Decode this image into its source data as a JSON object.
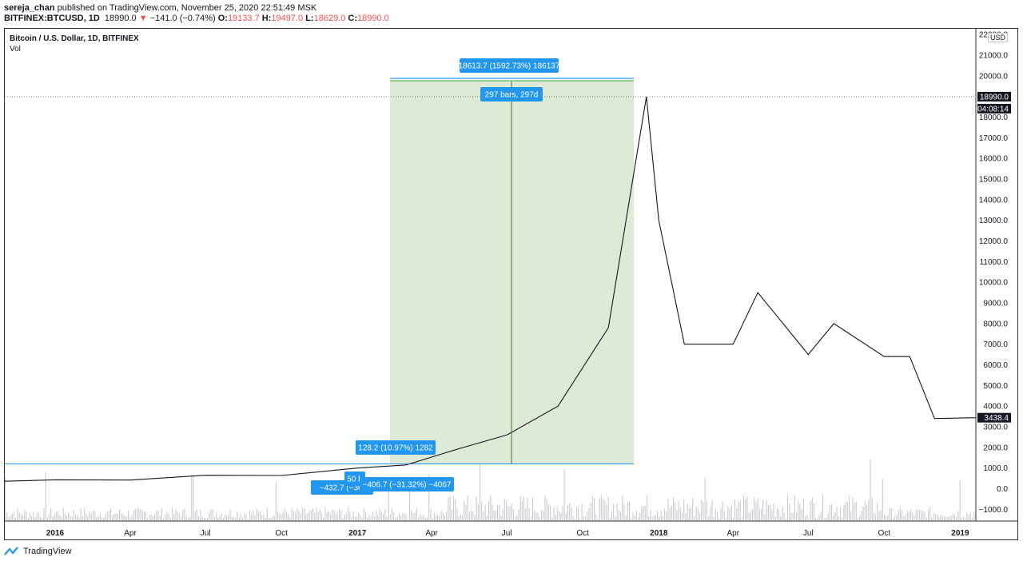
{
  "header": {
    "author": "sereja_chan",
    "published_text": "published on TradingView.com, November 25, 2020 22:51:49 MSK",
    "symbol": "BITFINEX:BTCUSD, 1D",
    "last": "18990.0",
    "change": "−141.0 (−0.74%)",
    "o_label": "O:",
    "o": "19133.7",
    "h_label": "H:",
    "h": "19497.0",
    "l_label": "L:",
    "l": "18629.0",
    "c_label": "C:",
    "c": "18990.0"
  },
  "legend": {
    "title": "Bitcoin / U.S. Dollar, 1D, BITFINEX",
    "volume": "Vol"
  },
  "price_axis": {
    "currency_button": "USD",
    "labels": [
      "22000.0",
      "21000.0",
      "20000.0",
      "19000.0",
      "18000.0",
      "17000.0",
      "16000.0",
      "15000.0",
      "14000.0",
      "13000.0",
      "12000.0",
      "11000.0",
      "10000.0",
      "9000.0",
      "8000.0",
      "7000.0",
      "6000.0",
      "5000.0",
      "4000.0",
      "3000.0",
      "2000.0",
      "1000.0",
      "0.0",
      "−1000.0"
    ],
    "last_price_tag": "18990.0",
    "countdown_tag": "04:08:14",
    "current_tag": "3438.4"
  },
  "time_axis": {
    "labels": [
      "2016",
      "Apr",
      "Jul",
      "Oct",
      "2017",
      "Apr",
      "Jul",
      "Oct",
      "2018",
      "Apr",
      "Jul",
      "Oct",
      "2019"
    ]
  },
  "annotations": {
    "range_top": "18613.7 (1592.73%) 186137",
    "range_bars": "297 bars, 297d",
    "small_up": "128.2 (10.97%) 1282",
    "small_down_a": "−432.7 (−36.",
    "small_down_a_tail": "50 b",
    "small_down_b": "−406.7 (−31.32%) −4067"
  },
  "colors": {
    "candle": "#131722",
    "range_fill": "#d7e8cf",
    "range_line": "#4caf50",
    "tag_blue": "#2196f3",
    "down": "#ef5350"
  },
  "chart_data": {
    "type": "line",
    "title": "Bitcoin / U.S. Dollar, 1D, BITFINEX",
    "xlabel": "",
    "ylabel": "USD",
    "ylim": [
      -1000,
      22000
    ],
    "x": [
      "2015-11",
      "2016-01",
      "2016-04",
      "2016-07",
      "2016-10",
      "2017-01",
      "2017-03",
      "2017-05",
      "2017-07",
      "2017-09",
      "2017-11",
      "2017-12-17",
      "2018-01",
      "2018-02",
      "2018-04",
      "2018-05",
      "2018-07",
      "2018-08",
      "2018-10",
      "2018-11",
      "2018-12",
      "2019-01-20"
    ],
    "series": [
      {
        "values": [
          360,
          430,
          420,
          650,
          640,
          1000,
          1150,
          1900,
          2600,
          4000,
          7800,
          18990,
          13000,
          7000,
          7000,
          9500,
          6500,
          8000,
          6400,
          6400,
          3400,
          3438
        ]
      }
    ],
    "grid": false,
    "legend": "top-left"
  }
}
